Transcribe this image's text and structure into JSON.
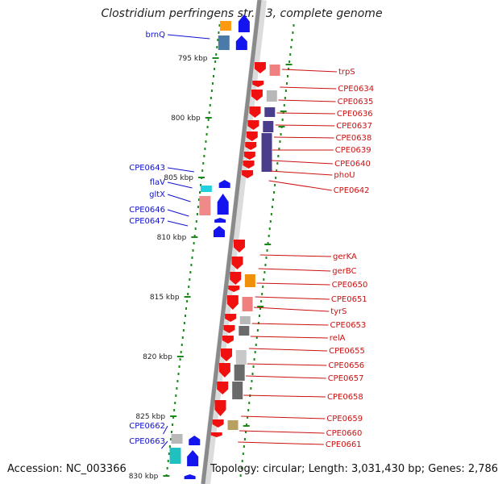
{
  "title": "Clostridium perfringens str. 13, complete genome",
  "footer": {
    "accession": "Accession: NC_003366",
    "info": "Topology: circular; Length: 3,031,430 bp; Genes: 2,786"
  },
  "colors": {
    "forward_label": "#1010cc",
    "reverse_label": "#cc1010",
    "backbone": "#8a8a8a",
    "tick": "#1a8a1a"
  },
  "ruler": [
    {
      "kbp": 795,
      "label": "795 kbp"
    },
    {
      "kbp": 800,
      "label": "800 kbp"
    },
    {
      "kbp": 805,
      "label": "805 kbp"
    },
    {
      "kbp": 810,
      "label": "810 kbp"
    },
    {
      "kbp": 815,
      "label": "815 kbp"
    },
    {
      "kbp": 820,
      "label": "820 kbp"
    },
    {
      "kbp": 825,
      "label": "825 kbp"
    },
    {
      "kbp": 830,
      "label": "830 kbp"
    }
  ],
  "genes_forward": [
    {
      "name": "brnQ"
    },
    {
      "name": "CPE0643"
    },
    {
      "name": "flaV"
    },
    {
      "name": "gltX"
    },
    {
      "name": "CPE0646"
    },
    {
      "name": "CPE0647"
    },
    {
      "name": "CPE0662"
    },
    {
      "name": "CPE0663"
    }
  ],
  "genes_reverse": [
    {
      "name": "trpS"
    },
    {
      "name": "CPE0634"
    },
    {
      "name": "CPE0635"
    },
    {
      "name": "CPE0636"
    },
    {
      "name": "CPE0637"
    },
    {
      "name": "CPE0638"
    },
    {
      "name": "CPE0639"
    },
    {
      "name": "CPE0640"
    },
    {
      "name": "phoU"
    },
    {
      "name": "CPE0642"
    },
    {
      "name": "gerKA"
    },
    {
      "name": "gerBC"
    },
    {
      "name": "CPE0650"
    },
    {
      "name": "CPE0651"
    },
    {
      "name": "tyrS"
    },
    {
      "name": "CPE0653"
    },
    {
      "name": "relA"
    },
    {
      "name": "CPE0655"
    },
    {
      "name": "CPE0656"
    },
    {
      "name": "CPE0657"
    },
    {
      "name": "CPE0658"
    },
    {
      "name": "CPE0659"
    },
    {
      "name": "CPE0660"
    },
    {
      "name": "CPE0661"
    }
  ]
}
